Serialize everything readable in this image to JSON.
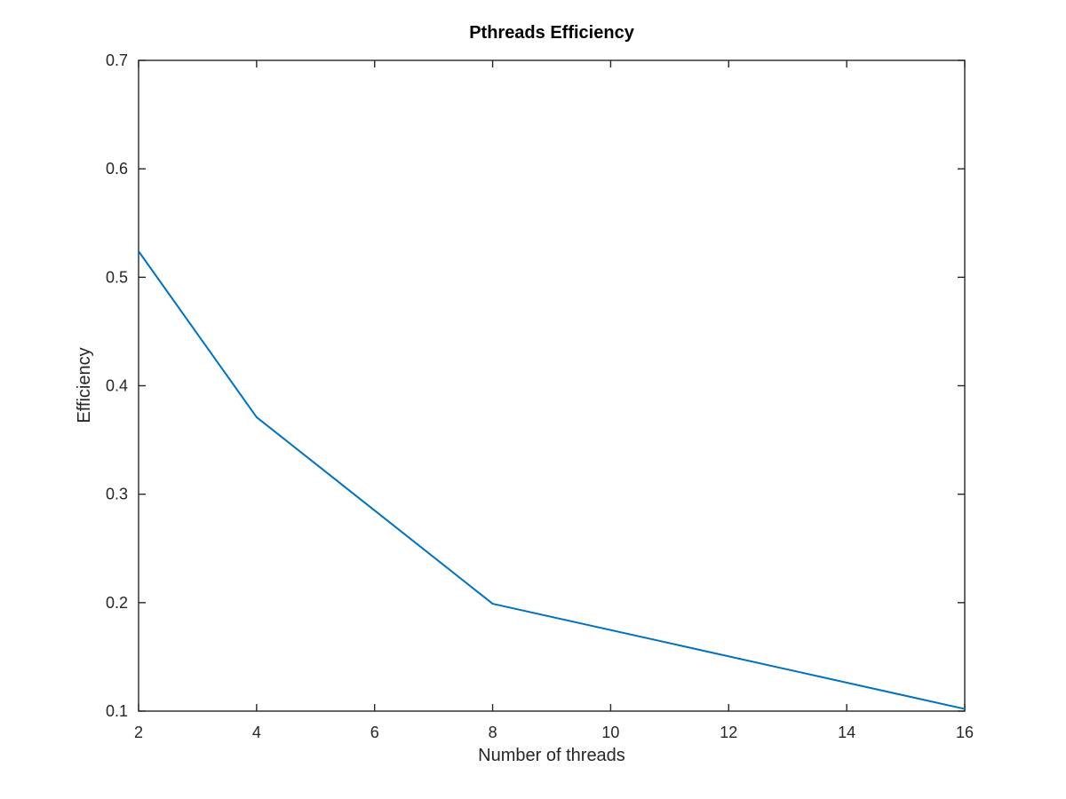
{
  "chart_data": {
    "type": "line",
    "title": "Pthreads Efficiency",
    "xlabel": "Number of threads",
    "ylabel": "Efficiency",
    "xlim": [
      2,
      16
    ],
    "ylim": [
      0.1,
      0.7
    ],
    "x_ticks": [
      "2",
      "4",
      "6",
      "8",
      "10",
      "12",
      "14",
      "16"
    ],
    "y_ticks": [
      "0.1",
      "0.2",
      "0.3",
      "0.4",
      "0.5",
      "0.6",
      "0.7"
    ],
    "grid": false,
    "series": [
      {
        "color": "#0072bd",
        "x": [
          2,
          4,
          8,
          16
        ],
        "y": [
          0.524,
          0.371,
          0.199,
          0.102
        ]
      }
    ]
  }
}
